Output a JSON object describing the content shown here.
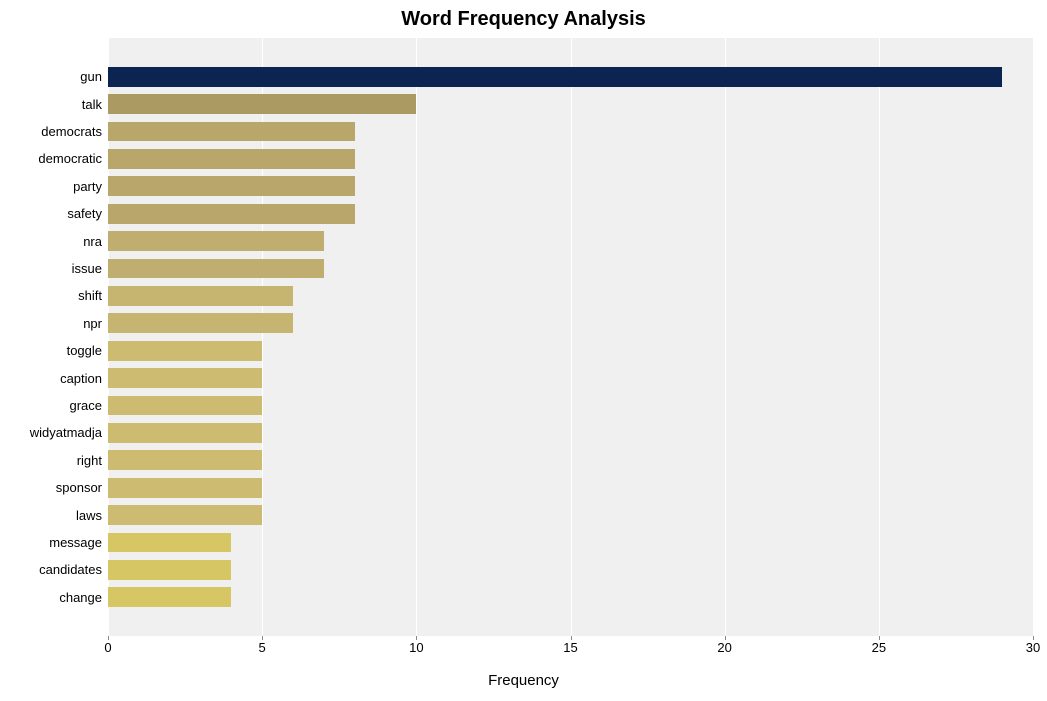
{
  "chart": {
    "type": "bar",
    "title": "Word Frequency Analysis",
    "title_fontsize": 20,
    "title_fontweight": 700,
    "xaxis_title": "Frequency",
    "xaxis_title_fontsize": 15,
    "xlim": [
      0,
      30
    ],
    "xtick_step": 5,
    "xticks": [
      0,
      5,
      10,
      15,
      20,
      25,
      30
    ],
    "tick_fontsize": 13,
    "ylabel_fontsize": 13,
    "background_color": "#ffffff",
    "plot_background_color": "#f0f0f0",
    "grid_color": "#ffffff",
    "bar_height_ratio": 0.72,
    "categories": [
      "gun",
      "talk",
      "democrats",
      "democratic",
      "party",
      "safety",
      "nra",
      "issue",
      "shift",
      "npr",
      "toggle",
      "caption",
      "grace",
      "widyatmadja",
      "right",
      "sponsor",
      "laws",
      "message",
      "candidates",
      "change"
    ],
    "values": [
      29,
      10,
      8,
      8,
      8,
      8,
      7,
      7,
      6,
      6,
      5,
      5,
      5,
      5,
      5,
      5,
      5,
      4,
      4,
      4
    ],
    "bar_colors": [
      "#0b2452",
      "#ac9a63",
      "#b8a66b",
      "#b8a66b",
      "#b8a66b",
      "#b8a66b",
      "#bfae6f",
      "#bfae6f",
      "#c6b571",
      "#c6b571",
      "#ccbb70",
      "#ccbb70",
      "#ccbb70",
      "#ccbb70",
      "#ccbb70",
      "#ccbb70",
      "#ccbb70",
      "#d6c764",
      "#d6c764",
      "#d6c764"
    ]
  }
}
